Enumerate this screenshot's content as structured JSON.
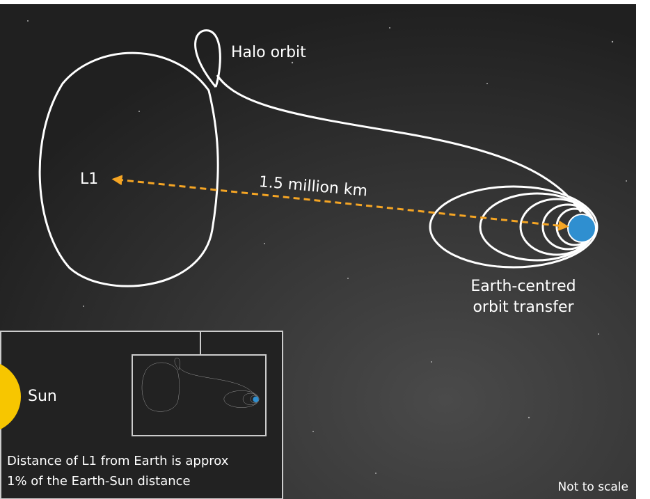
{
  "halo_label": "Halo orbit",
  "l1_label": "L1",
  "distance_label": "1.5 million km",
  "transfer_label": [
    "Earth-centred",
    "orbit transfer"
  ],
  "inset": {
    "sun_label": "Sun",
    "caption": [
      "Distance of L1 from Earth is approx",
      "1% of the Earth-Sun distance"
    ]
  },
  "footnote": "Not to scale"
}
